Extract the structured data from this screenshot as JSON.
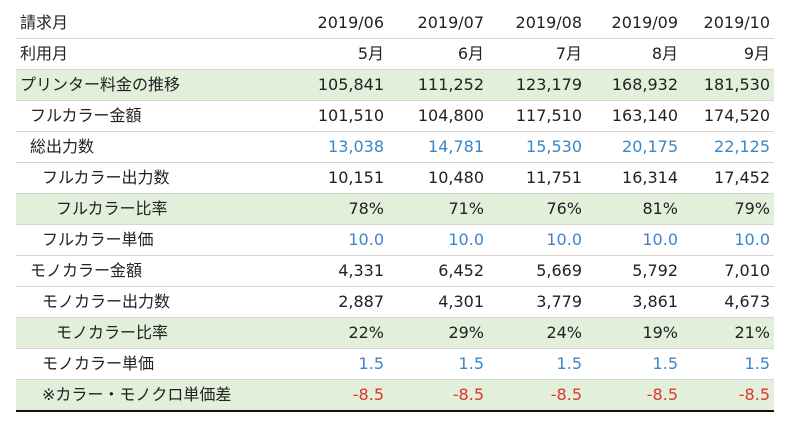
{
  "table": {
    "rows": [
      {
        "label": "請求月",
        "indent": 0,
        "highlight": false,
        "color": "plain",
        "values": [
          "2019/06",
          "2019/07",
          "2019/08",
          "2019/09",
          "2019/10"
        ]
      },
      {
        "label": "利用月",
        "indent": 0,
        "highlight": false,
        "color": "plain",
        "values": [
          "5月",
          "6月",
          "7月",
          "8月",
          "9月"
        ]
      },
      {
        "label": "プリンター料金の推移",
        "indent": 0,
        "highlight": true,
        "color": "plain",
        "values": [
          "105,841",
          "111,252",
          "123,179",
          "168,932",
          "181,530"
        ]
      },
      {
        "label": "フルカラー金額",
        "indent": 1,
        "highlight": false,
        "color": "plain",
        "values": [
          "101,510",
          "104,800",
          "117,510",
          "163,140",
          "174,520"
        ]
      },
      {
        "label": "総出力数",
        "indent": 1,
        "highlight": false,
        "color": "blue",
        "values": [
          "13,038",
          "14,781",
          "15,530",
          "20,175",
          "22,125"
        ]
      },
      {
        "label": "フルカラー出力数",
        "indent": 2,
        "highlight": false,
        "color": "plain",
        "values": [
          "10,151",
          "10,480",
          "11,751",
          "16,314",
          "17,452"
        ]
      },
      {
        "label": "フルカラー比率",
        "indent": 3,
        "highlight": true,
        "color": "plain",
        "values": [
          "78%",
          "71%",
          "76%",
          "81%",
          "79%"
        ]
      },
      {
        "label": "フルカラー単価",
        "indent": 2,
        "highlight": false,
        "color": "blue",
        "values": [
          "10.0",
          "10.0",
          "10.0",
          "10.0",
          "10.0"
        ]
      },
      {
        "label": "モノカラー金額",
        "indent": 1,
        "highlight": false,
        "color": "plain",
        "values": [
          "4,331",
          "6,452",
          "5,669",
          "5,792",
          "7,010"
        ]
      },
      {
        "label": "モノカラー出力数",
        "indent": 2,
        "highlight": false,
        "color": "plain",
        "values": [
          "2,887",
          "4,301",
          "3,779",
          "3,861",
          "4,673"
        ]
      },
      {
        "label": "モノカラー比率",
        "indent": 3,
        "highlight": true,
        "color": "plain",
        "values": [
          "22%",
          "29%",
          "24%",
          "19%",
          "21%"
        ]
      },
      {
        "label": "モノカラー単価",
        "indent": 2,
        "highlight": false,
        "color": "blue",
        "values": [
          "1.5",
          "1.5",
          "1.5",
          "1.5",
          "1.5"
        ]
      },
      {
        "label": "※カラー・モノクロ単価差",
        "indent": 2,
        "highlight": true,
        "color": "red",
        "values": [
          "-8.5",
          "-8.5",
          "-8.5",
          "-8.5",
          "-8.5"
        ]
      }
    ]
  }
}
